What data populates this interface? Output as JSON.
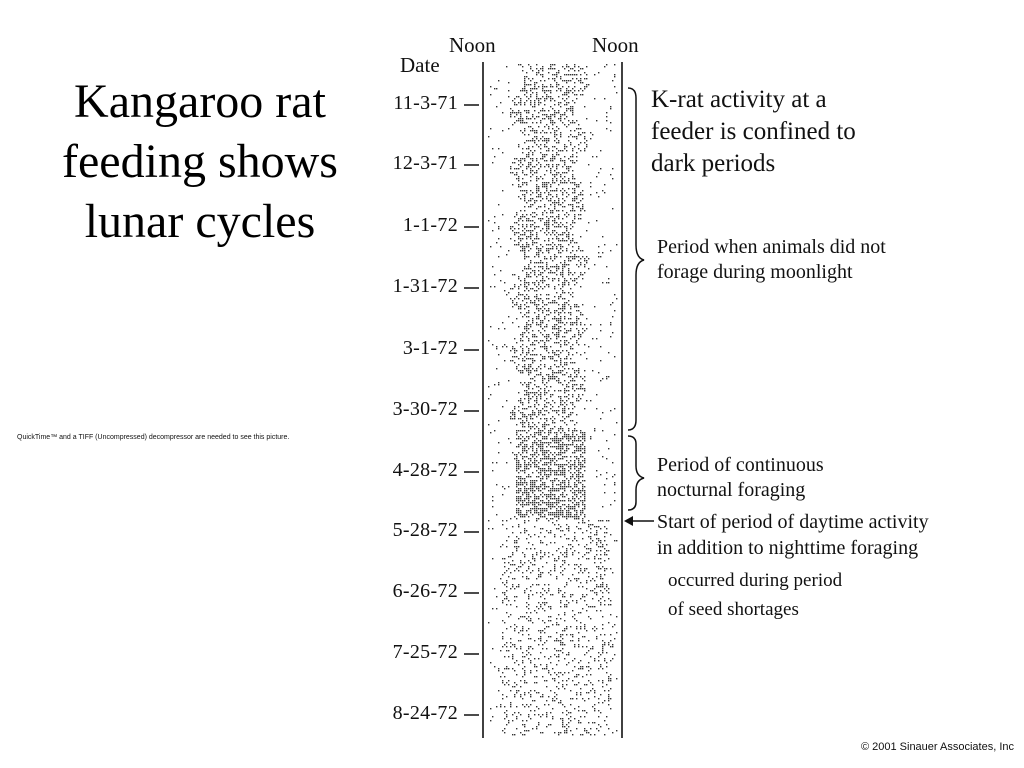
{
  "slide": {
    "title_lines": [
      "Kangaroo rat",
      "feeding shows",
      "lunar cycles"
    ],
    "placeholder_note": "QuickTime™ and a TIFF (Uncompressed) decompressor are needed to see this picture.",
    "copyright": "© 2001 Sinauer Associates, Inc"
  },
  "figure": {
    "noon_left": "Noon",
    "noon_right": "Noon",
    "date_header": "Date",
    "dates": [
      "11-3-71",
      "12-3-71",
      "1-1-72",
      "1-31-72",
      "3-1-72",
      "3-30-72",
      "4-28-72",
      "5-28-72",
      "6-26-72",
      "7-25-72",
      "8-24-72"
    ],
    "annotations": {
      "krat_lines": [
        "K-rat activity at a",
        "feeder is confined to",
        "dark periods"
      ],
      "moonlight_lines": [
        "Period when animals did not",
        "forage during moonlight"
      ],
      "nocturnal_lines": [
        "Period of continuous",
        "nocturnal foraging"
      ],
      "daytime_lines": [
        "Start of period of daytime activity",
        "in addition to nighttime foraging"
      ],
      "seed_lines": [
        "occurred during period",
        "of seed shortages"
      ]
    },
    "colors": {
      "ink": "#111111",
      "background": "#ffffff"
    }
  }
}
